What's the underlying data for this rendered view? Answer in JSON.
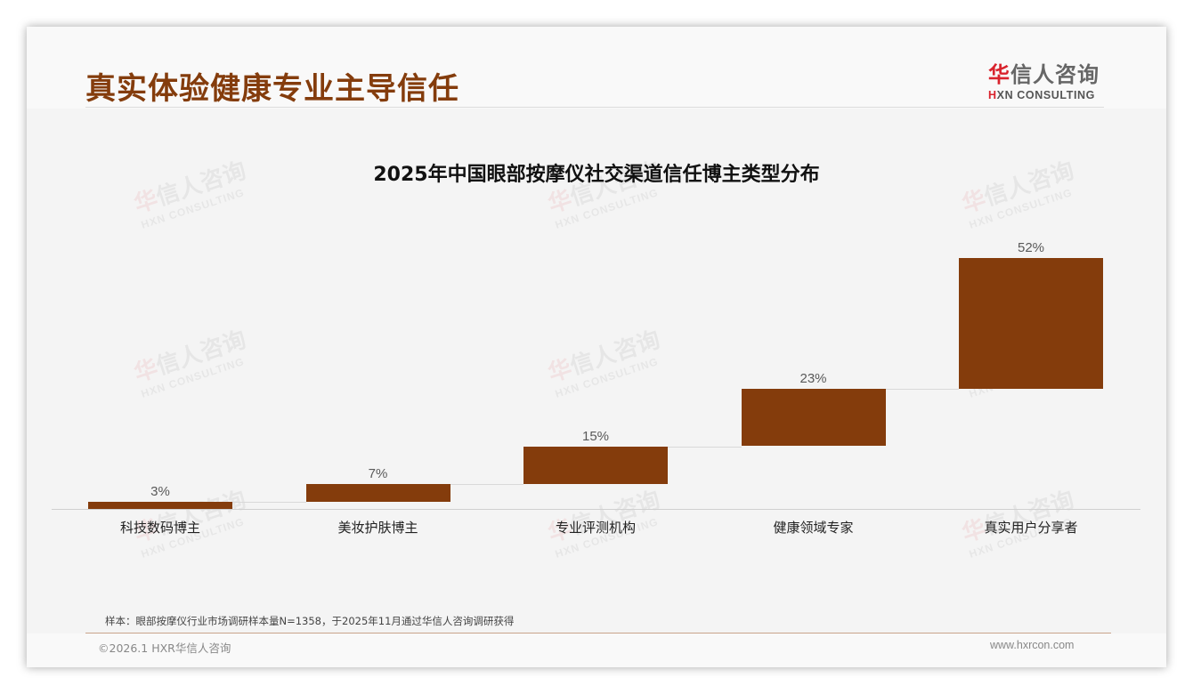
{
  "header": {
    "page_title": "真实体验健康专业主导信任",
    "logo": {
      "cn_accent": "华",
      "cn_rest": "信人咨询",
      "en_accent": "H",
      "en_rest": "XN CONSULTING"
    }
  },
  "watermark": {
    "cn_accent": "华",
    "cn_rest": "信人咨询",
    "en": "HXN CONSULTING"
  },
  "chart_data": {
    "type": "bar",
    "subtype": "waterfall",
    "title": "2025年中国眼部按摩仪社交渠道信任博主类型分布",
    "categories": [
      "科技数码博主",
      "美妆护肤博主",
      "专业评测机构",
      "健康领域专家",
      "真实用户分享者"
    ],
    "values": [
      3,
      7,
      15,
      23,
      52
    ],
    "labels": [
      "3%",
      "7%",
      "15%",
      "23%",
      "52%"
    ],
    "cumulative_start": [
      0,
      3,
      10,
      25,
      48
    ],
    "unit": "%",
    "xlabel": "",
    "ylabel": "",
    "ylim": [
      0,
      100
    ],
    "grid": false,
    "legend": "none",
    "bar_color": "#843c0c",
    "connector_color": "#d9d9d9"
  },
  "footer": {
    "note": "样本：眼部按摩仪行业市场调研样本量N=1358，于2025年11月通过华信人咨询调研获得",
    "copyright": "©2026.1 HXR华信人咨询",
    "website": "www.hxrcon.com"
  }
}
